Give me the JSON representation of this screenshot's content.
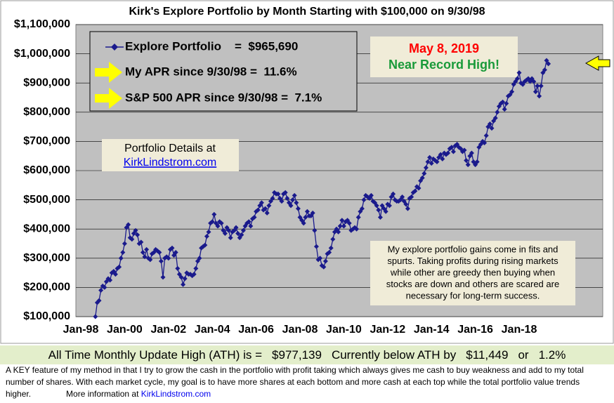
{
  "chart_data": {
    "type": "line",
    "title": "Kirk's Explore Portfolio by Month Starting with $100,000 on 9/30/98",
    "categories": [
      "Jan-98",
      null,
      null,
      null,
      null,
      null,
      null,
      null,
      null,
      null,
      null,
      null,
      null,
      null,
      null,
      null,
      null,
      null,
      null,
      null,
      null,
      null,
      null,
      null,
      "Jan-00",
      null,
      null,
      null,
      null,
      null,
      null,
      null,
      null,
      null,
      null,
      null,
      null,
      null,
      null,
      null,
      null,
      null,
      null,
      null,
      null,
      null,
      null,
      null,
      "Jan-02",
      null,
      null,
      null,
      null,
      null,
      null,
      null,
      null,
      null,
      null,
      null,
      null,
      null,
      null,
      null,
      null,
      null,
      null,
      null,
      null,
      null,
      null,
      null,
      "Jan-04",
      null,
      null,
      null,
      null,
      null,
      null,
      null,
      null,
      null,
      null,
      null,
      null,
      null,
      null,
      null,
      null,
      null,
      null,
      null,
      null,
      null,
      null,
      null,
      "Jan-06",
      null,
      null,
      null,
      null,
      null,
      null,
      null,
      null,
      null,
      null,
      null,
      null,
      null,
      null,
      null,
      null,
      null,
      null,
      null,
      null,
      null,
      null,
      null,
      "Jan-08",
      null,
      null,
      null,
      null,
      null,
      null,
      null,
      null,
      null,
      null,
      null,
      null,
      null,
      null,
      null,
      null,
      null,
      null,
      null,
      null,
      null,
      null,
      null,
      "Jan-10",
      null,
      null,
      null,
      null,
      null,
      null,
      null,
      null,
      null,
      null,
      null,
      null,
      null,
      null,
      null,
      null,
      null,
      null,
      null,
      null,
      null,
      null,
      null,
      "Jan-12",
      null,
      null,
      null,
      null,
      null,
      null,
      null,
      null,
      null,
      null,
      null,
      null,
      null,
      null,
      null,
      null,
      null,
      null,
      null,
      null,
      null,
      null,
      null,
      "Jan-14",
      null,
      null,
      null,
      null,
      null,
      null,
      null,
      null,
      null,
      null,
      null,
      null,
      null,
      null,
      null,
      null,
      null,
      null,
      null,
      null,
      null,
      null,
      null,
      "Jan-16",
      null,
      null,
      null,
      null,
      null,
      null,
      null,
      null,
      null,
      null,
      null,
      null,
      null,
      null,
      null,
      null,
      null,
      null,
      null,
      null,
      null,
      null,
      null,
      "Jan-18",
      null,
      null,
      null,
      null,
      null,
      null,
      null,
      null,
      null,
      null,
      null,
      null,
      null,
      null,
      null,
      null
    ],
    "series": [
      {
        "name": "Explore Portfolio",
        "color": "#1a1a8c",
        "values": [
          null,
          null,
          null,
          null,
          null,
          null,
          null,
          null,
          100000,
          148000,
          155000,
          190000,
          205000,
          200000,
          220000,
          230000,
          225000,
          250000,
          255000,
          245000,
          265000,
          270000,
          300000,
          320000,
          350000,
          405000,
          415000,
          370000,
          365000,
          385000,
          395000,
          380000,
          350000,
          355000,
          320000,
          305000,
          330000,
          300000,
          295000,
          315000,
          320000,
          330000,
          325000,
          320000,
          290000,
          235000,
          300000,
          305000,
          300000,
          330000,
          335000,
          310000,
          320000,
          265000,
          245000,
          235000,
          210000,
          230000,
          250000,
          245000,
          245000,
          240000,
          245000,
          265000,
          290000,
          300000,
          335000,
          340000,
          345000,
          375000,
          390000,
          420000,
          425000,
          450000,
          420000,
          410000,
          425000,
          420000,
          395000,
          385000,
          405000,
          395000,
          370000,
          390000,
          395000,
          405000,
          385000,
          370000,
          380000,
          395000,
          410000,
          420000,
          425000,
          410000,
          435000,
          440000,
          460000,
          465000,
          480000,
          490000,
          465000,
          470000,
          455000,
          480000,
          495000,
          505000,
          525000,
          520000,
          520000,
          505000,
          495000,
          520000,
          525000,
          505000,
          490000,
          480000,
          500000,
          515000,
          490000,
          470000,
          440000,
          430000,
          420000,
          440000,
          460000,
          445000,
          445000,
          455000,
          395000,
          340000,
          295000,
          300000,
          275000,
          270000,
          290000,
          315000,
          320000,
          335000,
          365000,
          390000,
          400000,
          390000,
          410000,
          430000,
          410000,
          425000,
          430000,
          420000,
          395000,
          400000,
          405000,
          400000,
          440000,
          460000,
          470000,
          500000,
          515000,
          510000,
          505000,
          515000,
          495000,
          490000,
          480000,
          465000,
          440000,
          480000,
          470000,
          460000,
          485000,
          480000,
          510000,
          520000,
          500000,
          495000,
          495000,
          500000,
          510000,
          495000,
          485000,
          470000,
          505000,
          510000,
          525000,
          530000,
          545000,
          540000,
          565000,
          575000,
          590000,
          610000,
          630000,
          645000,
          625000,
          640000,
          635000,
          630000,
          645000,
          655000,
          640000,
          660000,
          655000,
          660000,
          675000,
          680000,
          665000,
          685000,
          690000,
          680000,
          675000,
          665000,
          670000,
          635000,
          620000,
          650000,
          660000,
          630000,
          620000,
          630000,
          680000,
          690000,
          700000,
          695000,
          720000,
          750000,
          760000,
          745000,
          770000,
          780000,
          800000,
          820000,
          830000,
          835000,
          810000,
          830000,
          855000,
          860000,
          870000,
          895000,
          905000,
          915000,
          935000,
          900000,
          895000,
          905000,
          910000,
          915000,
          905000,
          915000,
          905000,
          870000,
          890000,
          855000,
          890000,
          935000,
          945000,
          977139,
          965690
        ]
      }
    ],
    "ylim": [
      100000,
      1100000
    ],
    "yticks": [
      {
        "value": 100000,
        "label": "$100,000"
      },
      {
        "value": 200000,
        "label": "$200,000"
      },
      {
        "value": 300000,
        "label": "$300,000"
      },
      {
        "value": 400000,
        "label": "$400,000"
      },
      {
        "value": 500000,
        "label": "$500,000"
      },
      {
        "value": 600000,
        "label": "$600,000"
      },
      {
        "value": 700000,
        "label": "$700,000"
      },
      {
        "value": 800000,
        "label": "$800,000"
      },
      {
        "value": 900000,
        "label": "$900,000"
      },
      {
        "value": 1000000,
        "label": "$1,000,000"
      },
      {
        "value": 1100000,
        "label": "$1,100,000"
      }
    ],
    "grid": true,
    "legend_value": "=  $965,690",
    "annotations": {
      "apr": "My APR since 9/30/98 =  11.6%",
      "sp500": "S&P 500 APR since 9/30/98 =  7.1%",
      "date": "May 8, 2019",
      "status": "Near Record High!",
      "details": "Portfolio Details at",
      "details_link": "KirkLindstrom.com",
      "note": [
        "My explore portfolio gains come in fits and",
        "spurts. Taking profits during rising markets",
        "while other are greedy then buying when",
        "stocks are down and others are scared are",
        "necessary for long-term success."
      ]
    }
  },
  "footer": {
    "ath_label": "All Time Monthly Update High (ATH) is =",
    "ath_value": "$977,139",
    "below_label": "Currently below ATH by",
    "below_value": "$11,449",
    "or": "or",
    "below_pct": "1.2%",
    "text": "A KEY feature of my method in that I try to grow the cash in the portfolio with profit taking which always gives me cash to buy weakness and add to my total number of shares.  With each market cycle, my goal is to have more shares at each bottom and more cash at each top while the total portfolio value trends higher.",
    "more": "More information at",
    "link": "KirkLindstrom.com"
  }
}
